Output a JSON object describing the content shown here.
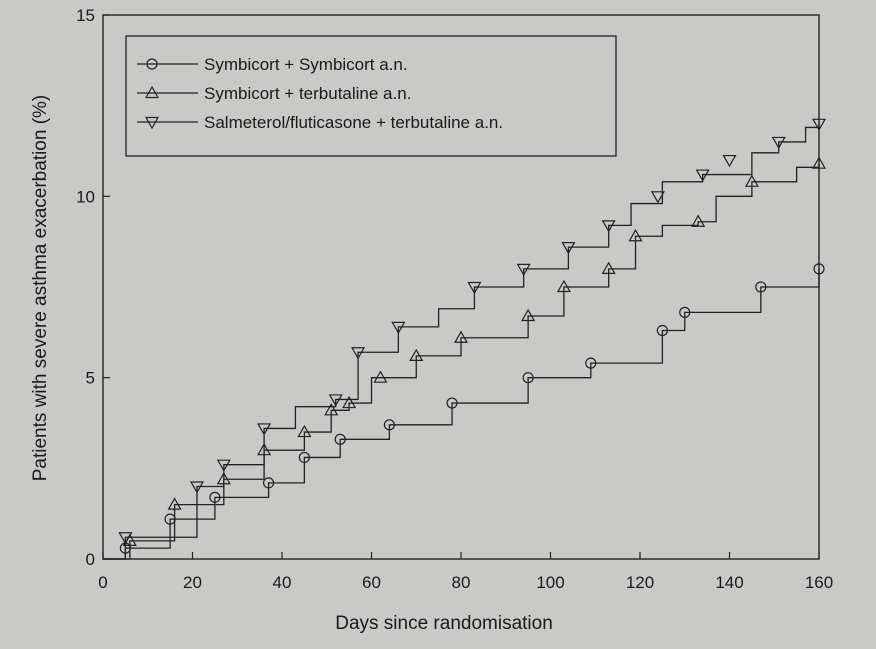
{
  "chart_data": {
    "type": "line",
    "xlabel": "Days since randomisation",
    "ylabel": "Patients with severe asthma exacerbation (%)",
    "xlim": [
      0,
      160
    ],
    "ylim": [
      0,
      15
    ],
    "xticks": [
      0,
      20,
      40,
      60,
      80,
      100,
      120,
      140,
      160
    ],
    "yticks": [
      0,
      5,
      10,
      15
    ],
    "grid": false,
    "legend_position": "top-left",
    "series": [
      {
        "name": "Symbicort + Symbicort a.n.",
        "marker": "circle",
        "x": [
          0,
          5,
          15,
          25,
          37,
          45,
          53,
          64,
          78,
          95,
          109,
          125,
          130,
          147,
          160
        ],
        "y": [
          0,
          0.3,
          1.1,
          1.7,
          2.1,
          2.8,
          3.3,
          3.7,
          4.3,
          5.0,
          5.4,
          6.3,
          6.8,
          7.5,
          8.0
        ],
        "markers_x": [
          5,
          15,
          25,
          37,
          45,
          53,
          64,
          78,
          95,
          109,
          125,
          130,
          147,
          160
        ],
        "markers_y": [
          0.3,
          1.1,
          1.7,
          2.1,
          2.8,
          3.3,
          3.7,
          4.3,
          5.0,
          5.4,
          6.3,
          6.8,
          7.5,
          8.0
        ]
      },
      {
        "name": "Symbicort + terbutaline a.n.",
        "marker": "triangle-up",
        "x": [
          0,
          6,
          16,
          27,
          36,
          45,
          51,
          55,
          60,
          70,
          80,
          95,
          103,
          113,
          119,
          125,
          133,
          137,
          145,
          155,
          160
        ],
        "y": [
          0,
          0.5,
          1.5,
          2.2,
          3.0,
          3.5,
          4.1,
          4.3,
          5.0,
          5.6,
          6.1,
          6.7,
          7.5,
          8.0,
          8.9,
          9.2,
          9.3,
          10.0,
          10.4,
          10.8,
          10.9
        ],
        "markers_x": [
          6,
          16,
          27,
          36,
          45,
          51,
          55,
          62,
          70,
          80,
          95,
          103,
          113,
          119,
          133,
          145,
          160
        ],
        "markers_y": [
          0.5,
          1.5,
          2.2,
          3.0,
          3.5,
          4.1,
          4.3,
          5.0,
          5.6,
          6.1,
          6.7,
          7.5,
          8.0,
          8.9,
          9.3,
          10.4,
          10.9
        ]
      },
      {
        "name": "Salmeterol/fluticasone + terbutaline a.n.",
        "marker": "triangle-down",
        "x": [
          0,
          5,
          21,
          27,
          36,
          43,
          52,
          57,
          66,
          75,
          83,
          94,
          104,
          113,
          118,
          125,
          134,
          145,
          151,
          157,
          160
        ],
        "y": [
          0,
          0.6,
          2.0,
          2.6,
          3.6,
          4.2,
          4.4,
          5.7,
          6.4,
          6.9,
          7.5,
          8.0,
          8.6,
          9.2,
          9.8,
          10.4,
          10.6,
          11.2,
          11.5,
          11.9,
          12.0
        ],
        "markers_x": [
          5,
          21,
          27,
          36,
          52,
          57,
          66,
          83,
          94,
          104,
          113,
          124,
          134,
          140,
          151,
          160
        ],
        "markers_y": [
          0.6,
          2.0,
          2.6,
          3.6,
          4.4,
          5.7,
          6.4,
          7.5,
          8.0,
          8.6,
          9.2,
          10.0,
          10.6,
          11.0,
          11.5,
          12.0
        ]
      }
    ]
  }
}
